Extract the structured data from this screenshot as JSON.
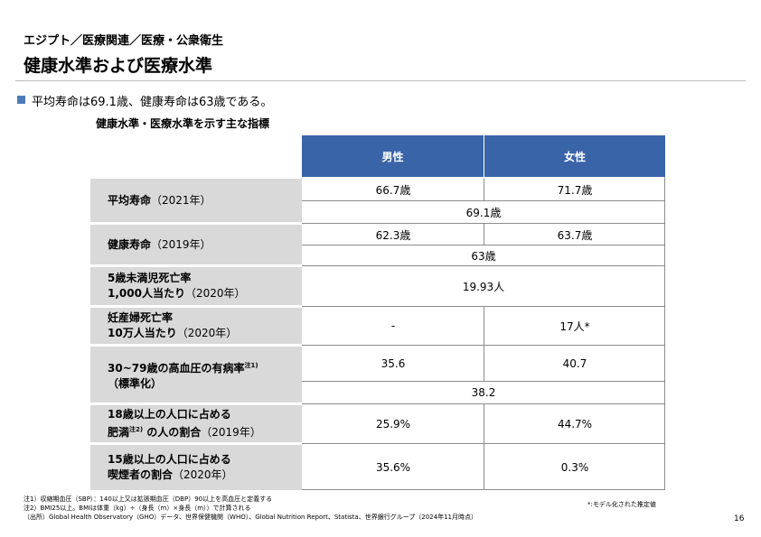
{
  "breadcrumb": "エジプト／医療関連／医療・公衆衛生",
  "title": "健康水準および医療水準",
  "bullet": "平均寿命は69.1歳、健康寿命は63歳である。",
  "table": {
    "title": "健康水準・医療水準を示す主な指標",
    "headers": [
      "男性",
      "女性"
    ],
    "rows": [
      {
        "label_bold": "平均寿命",
        "label_paren": "（2021年）",
        "male": "66.7歳",
        "female": "71.7歳",
        "combined": "69.1歳"
      },
      {
        "label_bold": "健康寿命",
        "label_paren": "（2019年）",
        "male": "62.3歳",
        "female": "63.7歳",
        "combined": "63歳"
      },
      {
        "label_line1": "5歳未満児死亡率",
        "label_line2_bold": "1,000人当たり",
        "label_line2_paren": "（2020年）",
        "combined": "19.93人"
      },
      {
        "label_line1": "妊産婦死亡率",
        "label_line2_bold": "10万人当たり",
        "label_line2_paren": "（2020年）",
        "male": "-",
        "female": "17人*"
      },
      {
        "label_line1": "30~79歳の高血圧の有病率",
        "label_line1_sup": "注1)",
        "label_line2": "（標準化）",
        "male": "35.6",
        "female": "40.7",
        "combined": "38.2"
      },
      {
        "label_line1": "18歳以上の人口に占める",
        "label_line2_bold": "肥満",
        "label_line2_sup": "注2)",
        "label_line2_bold2": " の人の割合",
        "label_line2_paren": "（2019年）",
        "male": "25.9%",
        "female": "44.7%"
      },
      {
        "label_line1": "15歳以上の人口に占める",
        "label_line2_bold": "喫煙者の割合",
        "label_line2_paren": "（2020年）",
        "male": "35.6%",
        "female": "0.3%"
      }
    ]
  },
  "notes": [
    "注1）収縮期血圧（SBP）：140以上又は拡張期血圧（DBP）90以上を高血圧と定義する",
    "注2）BMI25以上。BMIは体重（kg）÷（身長（m）×身長（m））で計算される",
    "（出所）Global Health Observatory（GHO）データ、世界保健機関（WHO）、Global Nutrition Report、Statista、世界銀行グループ（2024年11月時点）"
  ],
  "model_note": "*:モデル化された推定値",
  "page_number": "16",
  "colors": {
    "header_bg": "#3a64a8",
    "row_header_bg": "#d9d9d9",
    "bullet": "#4f7ab8"
  }
}
